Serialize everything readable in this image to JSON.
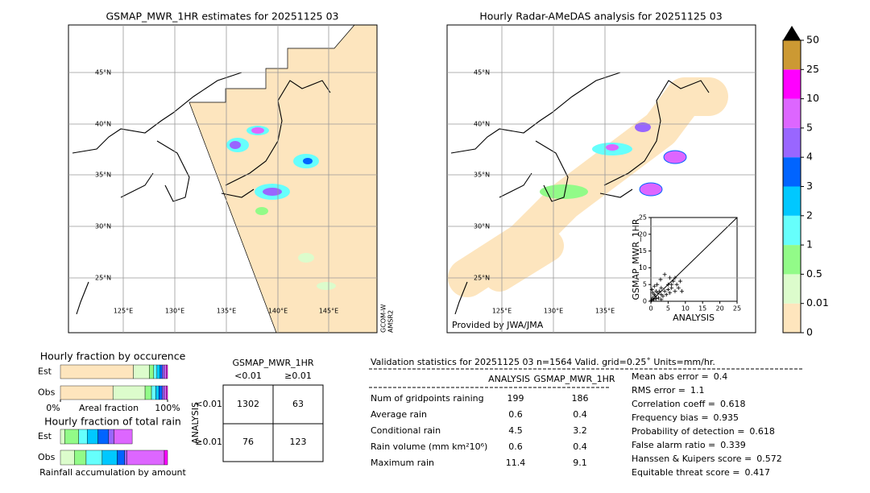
{
  "left_map": {
    "title": "GSMAP_MWR_1HR estimates for 20251125 03",
    "lat_labels": [
      "45°N",
      "40°N",
      "35°N",
      "30°N",
      "25°N"
    ],
    "lon_labels": [
      "125°E",
      "130°E",
      "135°E",
      "140°E",
      "145°E"
    ],
    "sensor_lines": [
      "GCOM-W",
      "AMSR2"
    ]
  },
  "right_map": {
    "title": "Hourly Radar-AMeDAS analysis for 20251125 03",
    "lat_labels": [
      "45°N",
      "40°N",
      "35°N",
      "30°N",
      "25°N"
    ],
    "lon_labels": [
      "125°E",
      "130°E",
      "135°E"
    ],
    "credit": "Provided by JWA/JMA"
  },
  "colorbar": {
    "ticks": [
      0,
      0.01,
      0.5,
      1,
      2,
      3,
      4,
      5,
      10,
      25,
      50
    ],
    "colors": [
      "#fee5bd",
      "#dcfccc",
      "#92fb88",
      "#66fffc",
      "#00c8ff",
      "#0064ff",
      "#9966ff",
      "#dd66ff",
      "#ff00ff",
      "#cc9933"
    ],
    "extend_color": "#000000"
  },
  "chart_data": [
    {
      "type": "scatter",
      "xlabel": "ANALYSIS",
      "ylabel": "GSMAP_MWR_1HR",
      "x": [
        0.2,
        0.5,
        0.8,
        1,
        1.2,
        1.5,
        2,
        2.2,
        2.5,
        3,
        3,
        3.5,
        4,
        4.5,
        5,
        5,
        5.5,
        6,
        6.5,
        7,
        7,
        7.5,
        8,
        8.5,
        9,
        0.3,
        0.6,
        1,
        1.8,
        2.8,
        4,
        5.5,
        6,
        3,
        1.5
      ],
      "values": [
        0.3,
        1,
        0.5,
        2,
        1.5,
        0.8,
        2.5,
        1,
        3,
        2,
        4,
        1.5,
        3,
        2,
        5,
        3.5,
        2.5,
        4,
        6,
        3,
        7,
        5,
        4,
        6,
        3,
        3.5,
        2.5,
        4.5,
        5,
        6.5,
        8,
        7,
        5,
        0.5,
        3
      ],
      "color": "#000000",
      "xlim": [
        0,
        25
      ],
      "ylim": [
        0,
        25
      ],
      "xticks": [
        0,
        5,
        10,
        15,
        20,
        25
      ],
      "yticks": [
        0,
        5,
        10,
        15,
        20,
        25
      ]
    },
    {
      "type": "stacked_barh",
      "title": "Hourly fraction by occurence",
      "xlabel": "Areal fraction",
      "categories": [
        "Est",
        "Obs"
      ],
      "xlim": [
        0,
        100
      ],
      "xticks": [
        {
          "value": 0,
          "label": "0%"
        },
        {
          "value": 100,
          "label": "100%"
        }
      ],
      "series": [
        {
          "color": "#fee5bd",
          "values": [
            68,
            49
          ]
        },
        {
          "color": "#dcfccc",
          "values": [
            15,
            30
          ]
        },
        {
          "color": "#92fb88",
          "values": [
            4,
            6
          ]
        },
        {
          "color": "#66fffc",
          "values": [
            3,
            4
          ]
        },
        {
          "color": "#00c8ff",
          "values": [
            3,
            3
          ]
        },
        {
          "color": "#0064ff",
          "values": [
            2,
            3
          ]
        },
        {
          "color": "#9966ff",
          "values": [
            2,
            2
          ]
        },
        {
          "color": "#dd66ff",
          "values": [
            2,
            2
          ]
        },
        {
          "color": "#ff00ff",
          "values": [
            1,
            1
          ]
        },
        {
          "color": "#cc9933",
          "values": [
            0,
            0
          ]
        }
      ]
    },
    {
      "type": "stacked_barh",
      "title": "Hourly fraction of total rain",
      "xlabel": "Rainfall accumulation by amount",
      "categories": [
        "Est",
        "Obs"
      ],
      "xlim": [
        0,
        100
      ],
      "series": [
        {
          "color": "#fee5bd",
          "values": [
            0,
            0
          ]
        },
        {
          "color": "#dcfccc",
          "values": [
            4,
            13
          ]
        },
        {
          "color": "#92fb88",
          "values": [
            13,
            11
          ]
        },
        {
          "color": "#66fffc",
          "values": [
            8,
            15
          ]
        },
        {
          "color": "#00c8ff",
          "values": [
            10,
            14
          ]
        },
        {
          "color": "#0064ff",
          "values": [
            10,
            7
          ]
        },
        {
          "color": "#9966ff",
          "values": [
            5,
            2
          ]
        },
        {
          "color": "#dd66ff",
          "values": [
            17,
            35
          ]
        },
        {
          "color": "#ff00ff",
          "values": [
            0,
            3
          ]
        },
        {
          "color": "#cc9933",
          "values": [
            0,
            0
          ]
        }
      ]
    }
  ],
  "contingency": {
    "title": "GSMAP_MWR_1HR",
    "col_labels": [
      "<0.01",
      "≥0.01"
    ],
    "row_title": "ANALYSIS",
    "row_labels": [
      "<0.01",
      "≥0.01"
    ],
    "cells": [
      [
        1302,
        63
      ],
      [
        76,
        123
      ]
    ]
  },
  "validation": {
    "header": "Validation statistics for 20251125 03  n=1564 Valid. grid=0.25˚ Units=mm/hr.",
    "columns": [
      "ANALYSIS",
      "GSMAP_MWR_1HR"
    ],
    "rows": [
      {
        "label": "Num of gridpoints raining",
        "values": [
          199,
          186
        ]
      },
      {
        "label": "Average rain",
        "values": [
          0.6,
          0.4
        ]
      },
      {
        "label": "Conditional rain",
        "values": [
          4.5,
          3.2
        ]
      },
      {
        "label": "Rain volume (mm km²10⁶)",
        "values": [
          0.6,
          0.4
        ]
      },
      {
        "label": "Maximum rain",
        "values": [
          11.4,
          9.1
        ]
      }
    ],
    "scores": [
      {
        "label": "Mean abs error =",
        "value": 0.4
      },
      {
        "label": "RMS error =",
        "value": 1.1
      },
      {
        "label": "Correlation coeff =",
        "value": 0.618
      },
      {
        "label": "Frequency bias =",
        "value": 0.935
      },
      {
        "label": "Probability of detection =",
        "value": 0.618
      },
      {
        "label": "False alarm ratio =",
        "value": 0.339
      },
      {
        "label": "Hanssen & Kuipers score =",
        "value": 0.572
      },
      {
        "label": "Equitable threat score =",
        "value": 0.417
      }
    ]
  }
}
